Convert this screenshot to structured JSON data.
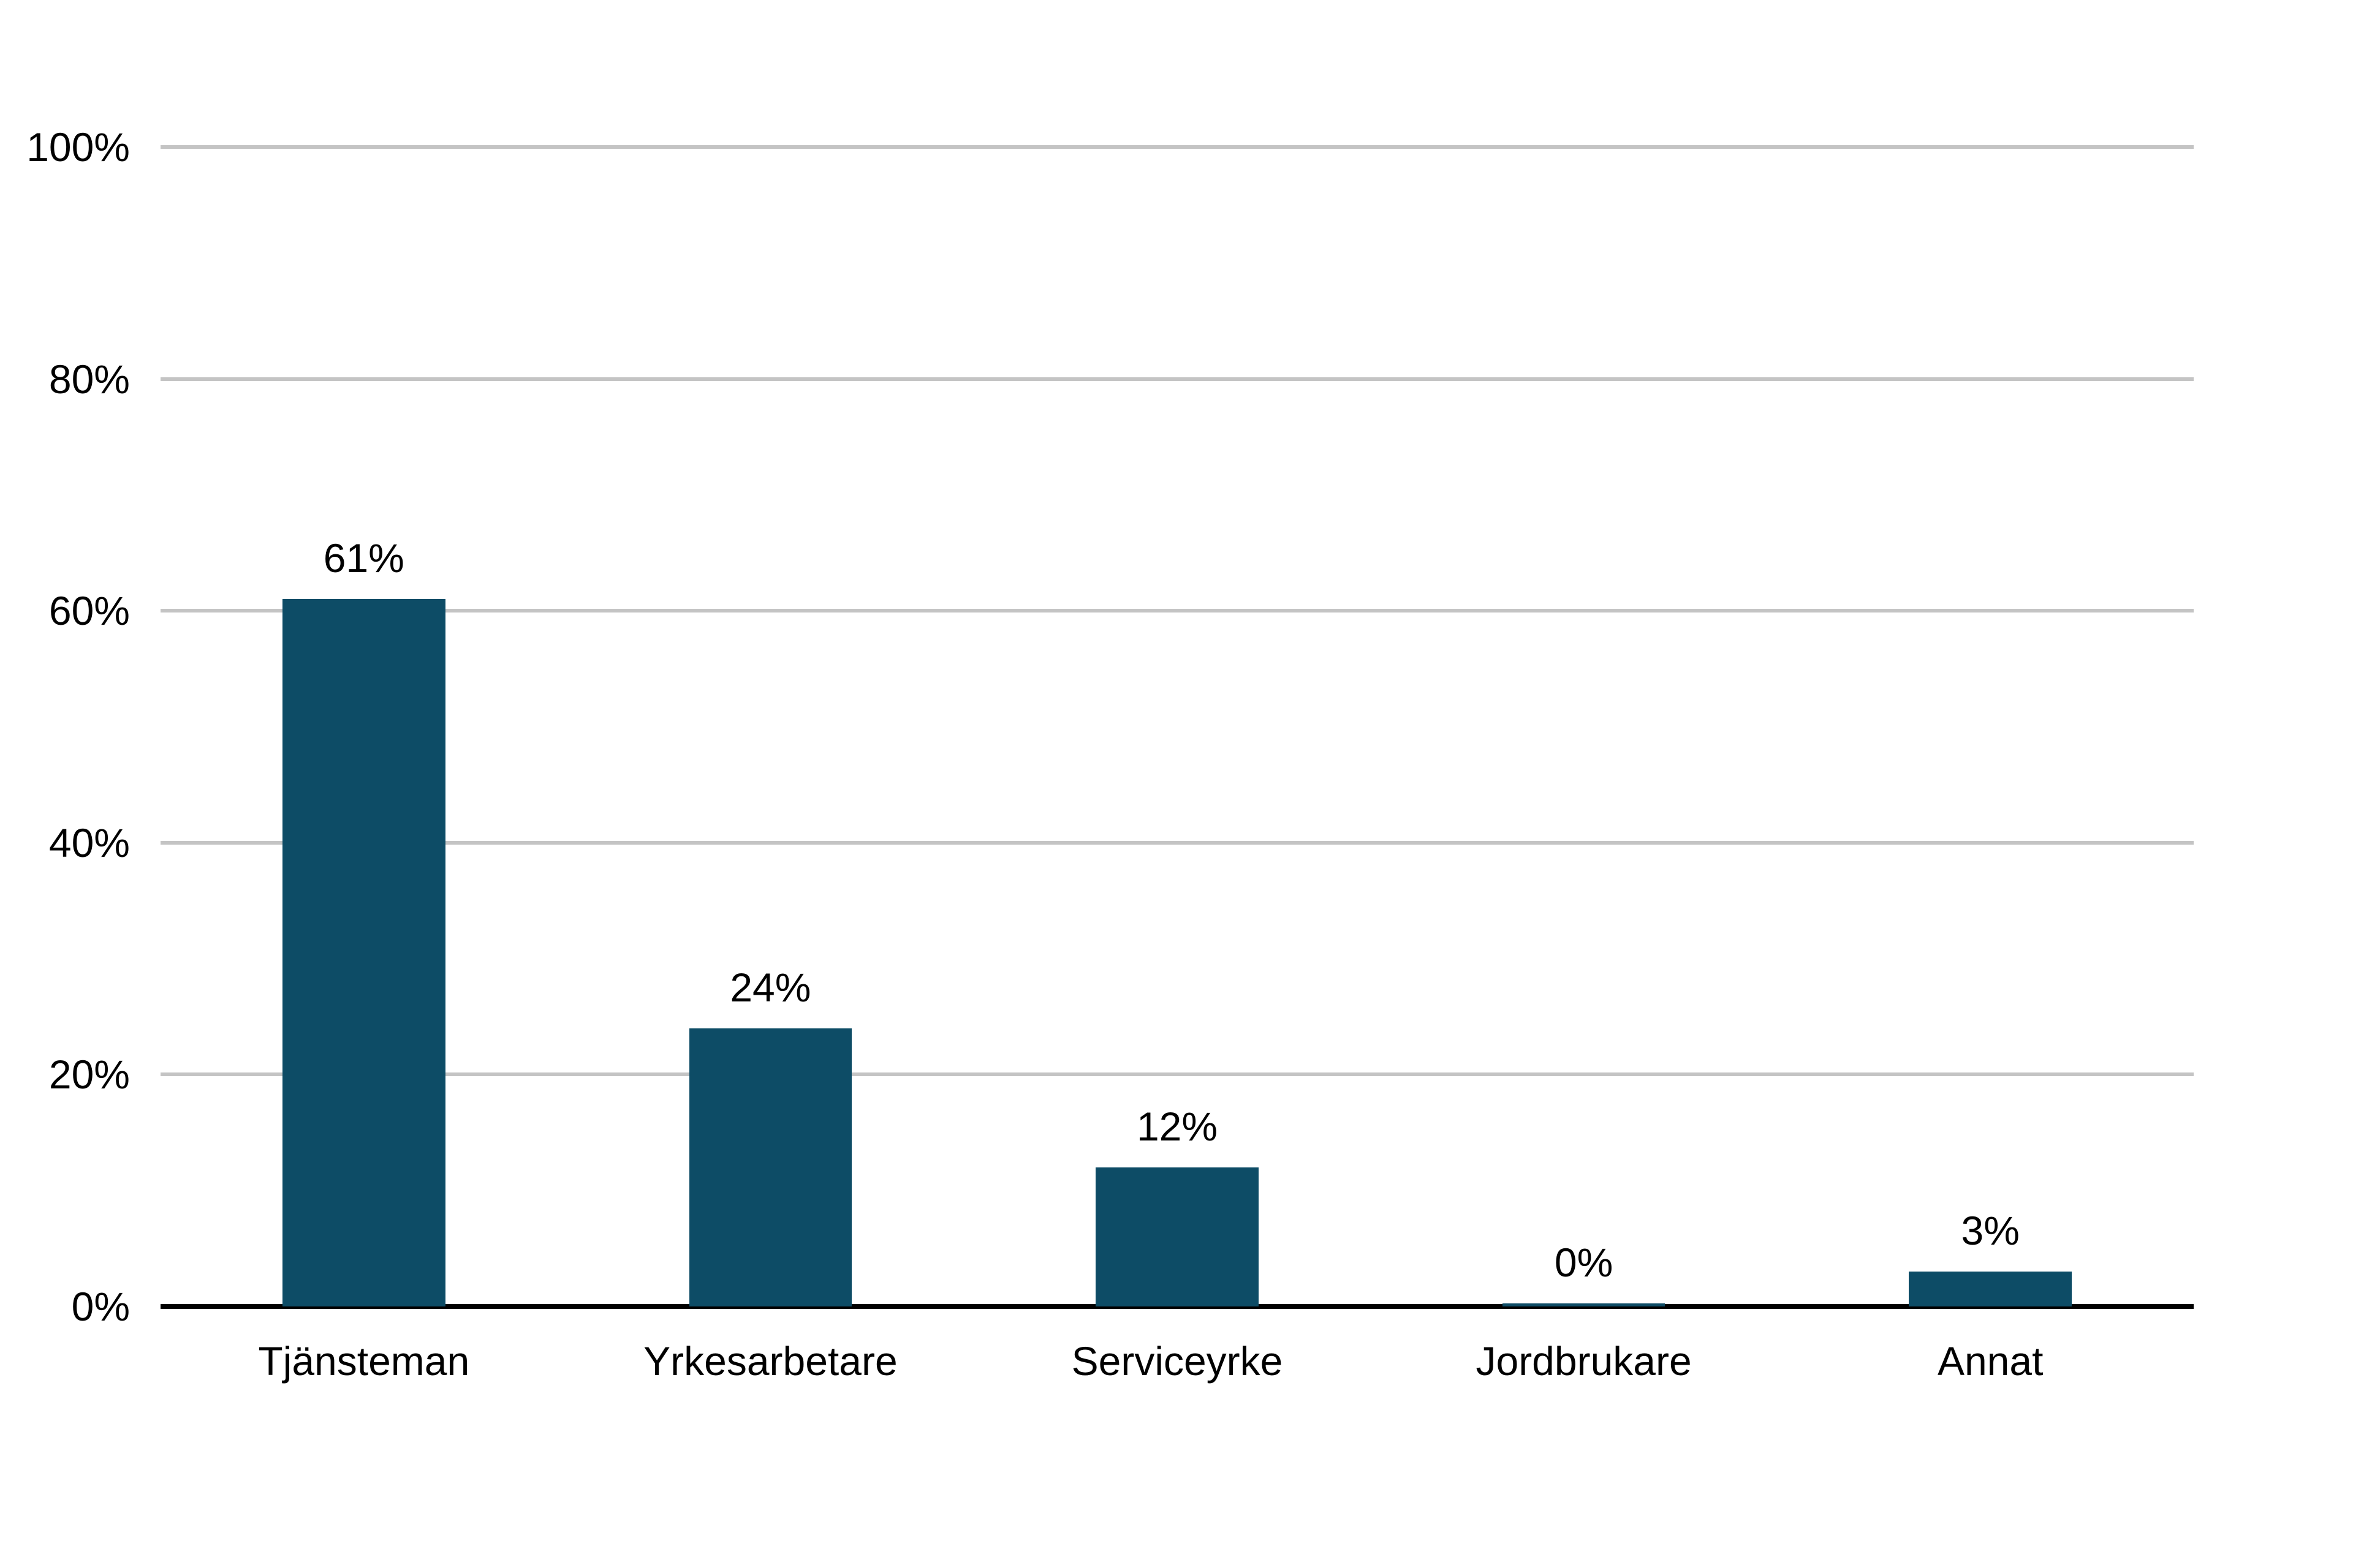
{
  "chart_data": {
    "type": "bar",
    "title": "",
    "categories": [
      "Tjänsteman",
      "Yrkesarbetare",
      "Serviceyrke",
      "Jordbrukare",
      "Annat"
    ],
    "values": [
      61,
      24,
      12,
      0,
      3
    ],
    "value_labels": [
      "61%",
      "24%",
      "12%",
      "0%",
      "3%"
    ],
    "xlabel": "",
    "ylabel": "",
    "ylim": [
      0,
      100
    ],
    "y_ticks": [
      {
        "value": 0,
        "label": "0%"
      },
      {
        "value": 20,
        "label": "20%"
      },
      {
        "value": 40,
        "label": "40%"
      },
      {
        "value": 60,
        "label": "60%"
      },
      {
        "value": 80,
        "label": "80%"
      },
      {
        "value": 100,
        "label": "100%"
      }
    ],
    "grid": "horizontal-only",
    "legend": "none",
    "colors": {
      "bar": "#0d4c66",
      "gridline": "#c4c4c4",
      "axis": "#000000",
      "text": "#000000",
      "background": "#ffffff"
    }
  }
}
